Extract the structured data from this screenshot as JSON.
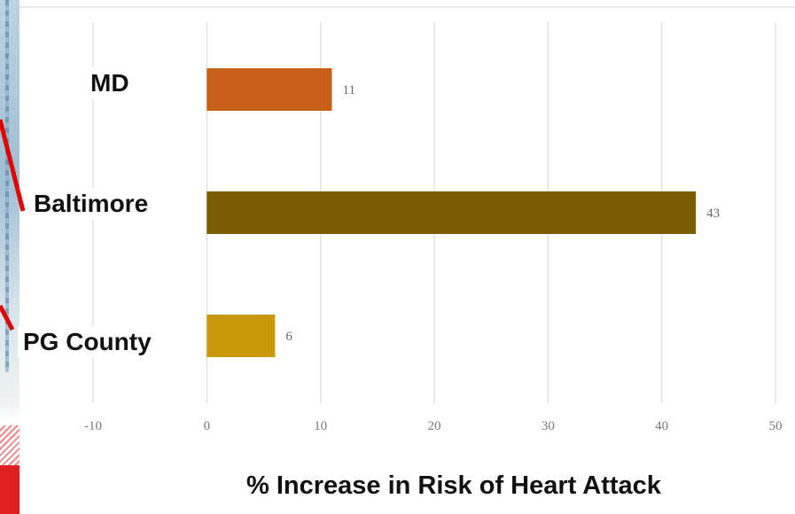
{
  "chart_data": {
    "type": "bar",
    "orientation": "horizontal",
    "title": "",
    "xlabel": "% Increase in Risk of Heart Attack",
    "ylabel": "",
    "categories": [
      "MD",
      "Baltimore",
      "PG County"
    ],
    "values": [
      11,
      43,
      6
    ],
    "colors": [
      "#c9601a",
      "#7a5c04",
      "#c9980a"
    ],
    "xlim": [
      -10,
      50
    ],
    "xticks": [
      -10,
      0,
      10,
      20,
      30,
      40,
      50
    ],
    "grid": "vertical"
  }
}
